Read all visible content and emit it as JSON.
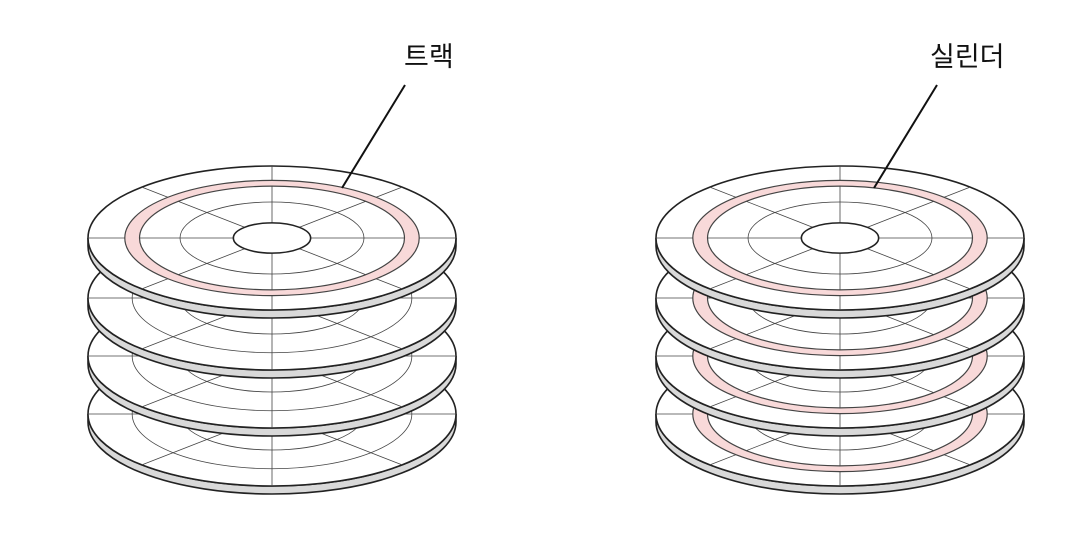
{
  "labels": {
    "track": "트랙",
    "cylinder": "실린더"
  },
  "style": {
    "highlight_fill": "#f8d9d9",
    "highlight_stroke": "#444444",
    "platter_fill": "#ffffff",
    "platter_edge": "#d9d9d9",
    "line_color": "#222222"
  },
  "stacks": [
    {
      "name": "track-stack",
      "platter_count": 4,
      "highlighted_platters": [
        0
      ]
    },
    {
      "name": "cylinder-stack",
      "platter_count": 4,
      "highlighted_platters": [
        0,
        1,
        2,
        3
      ]
    }
  ]
}
